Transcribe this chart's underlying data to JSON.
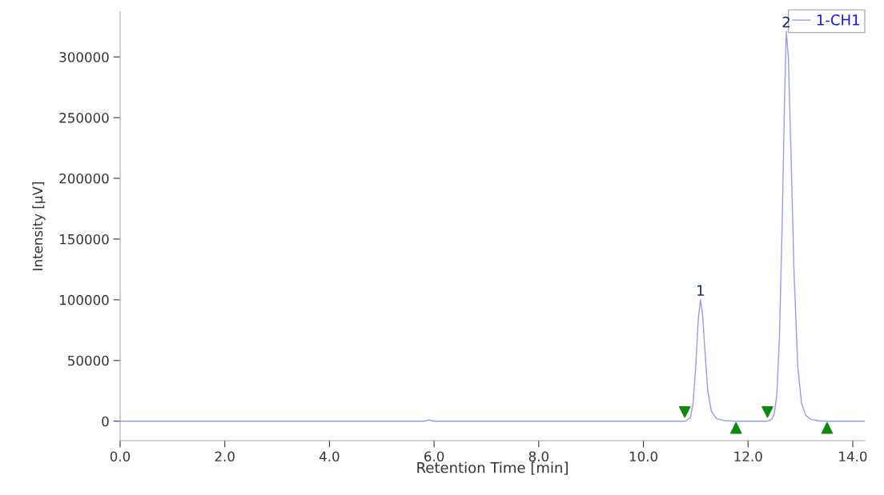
{
  "chart_data": {
    "type": "line",
    "xlabel": "Retention Time [min]",
    "ylabel": "Intensity [µV]",
    "xlim": [
      0,
      14.23
    ],
    "ylim": [
      -16000,
      337000
    ],
    "xticks": [
      {
        "value": 0,
        "label": "0.0"
      },
      {
        "value": 2,
        "label": "2.0"
      },
      {
        "value": 4,
        "label": "4.0"
      },
      {
        "value": 6,
        "label": "6.0"
      },
      {
        "value": 8,
        "label": "8.0"
      },
      {
        "value": 10,
        "label": "10.0"
      },
      {
        "value": 12,
        "label": "12.0"
      },
      {
        "value": 14,
        "label": "14.0"
      }
    ],
    "yticks": [
      0,
      50000,
      100000,
      150000,
      200000,
      250000,
      300000
    ],
    "grid": false,
    "legend": "top right",
    "series": [
      {
        "name": "1-CH1",
        "color": "#9a9af0",
        "marker": "none",
        "x": [
          0,
          5.8,
          5.9,
          6.0,
          10.8,
          10.9,
          10.95,
          11.0,
          11.05,
          11.09,
          11.13,
          11.18,
          11.23,
          11.3,
          11.4,
          11.55,
          11.77,
          12.37,
          12.45,
          12.5,
          12.55,
          12.6,
          12.65,
          12.7,
          12.73,
          12.77,
          12.82,
          12.88,
          12.95,
          13.02,
          13.1,
          13.2,
          13.35,
          13.51,
          14.23
        ],
        "values": [
          0,
          0,
          1000,
          0,
          0,
          3000,
          15000,
          45000,
          85000,
          100000,
          88000,
          55000,
          25000,
          8000,
          2000,
          500,
          0,
          0,
          1500,
          6000,
          22000,
          70000,
          160000,
          270000,
          321000,
          300000,
          220000,
          120000,
          45000,
          15000,
          5000,
          1500,
          300,
          0,
          0
        ]
      },
      {
        "type": "scatter",
        "color": "#118811",
        "marker": "triangle-down",
        "x": [
          10.79,
          12.37
        ],
        "values": [
          7600,
          7600
        ]
      },
      {
        "type": "scatter",
        "color": "#118811",
        "marker": "triangle",
        "x": [
          11.77,
          13.51
        ],
        "values": [
          -5600,
          -5600
        ]
      }
    ],
    "annotations": [
      {
        "text": "1",
        "x": 11.09,
        "y": 100000
      },
      {
        "text": "2",
        "x": 12.73,
        "y": 321000
      }
    ]
  }
}
